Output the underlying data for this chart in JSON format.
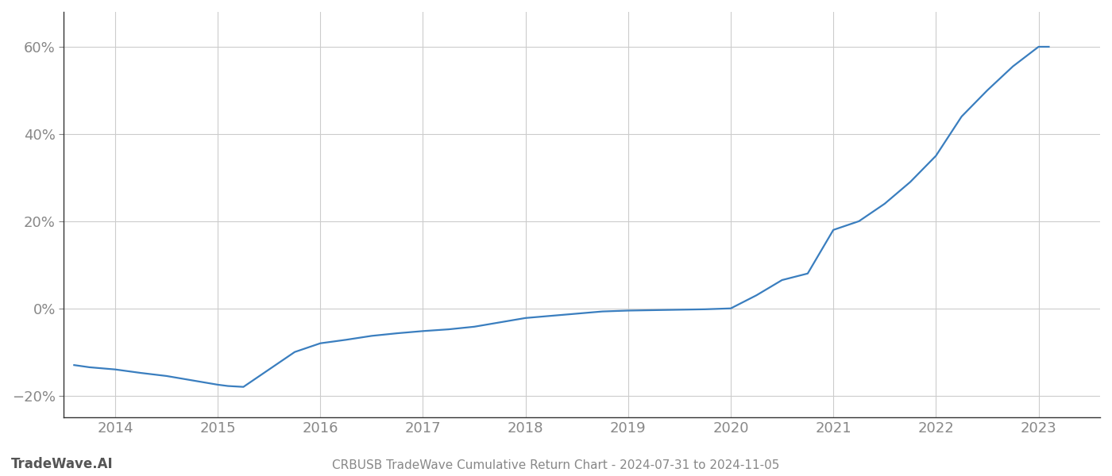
{
  "title": "CRBUSB TradeWave Cumulative Return Chart - 2024-07-31 to 2024-11-05",
  "watermark": "TradeWave.AI",
  "line_color": "#3a7ebf",
  "background_color": "#ffffff",
  "grid_color": "#cccccc",
  "x_years": [
    2013.6,
    2013.75,
    2014.0,
    2014.25,
    2014.5,
    2014.75,
    2015.0,
    2015.1,
    2015.25,
    2015.5,
    2015.75,
    2016.0,
    2016.25,
    2016.5,
    2016.75,
    2017.0,
    2017.25,
    2017.5,
    2017.75,
    2018.0,
    2018.25,
    2018.5,
    2018.75,
    2019.0,
    2019.25,
    2019.5,
    2019.75,
    2020.0,
    2020.25,
    2020.5,
    2020.75,
    2021.0,
    2021.25,
    2021.5,
    2021.75,
    2022.0,
    2022.25,
    2022.5,
    2022.75,
    2023.0,
    2023.1
  ],
  "y_values": [
    -0.13,
    -0.135,
    -0.14,
    -0.148,
    -0.155,
    -0.165,
    -0.175,
    -0.178,
    -0.18,
    -0.14,
    -0.1,
    -0.08,
    -0.072,
    -0.063,
    -0.057,
    -0.052,
    -0.048,
    -0.042,
    -0.032,
    -0.022,
    -0.017,
    -0.012,
    -0.007,
    -0.005,
    -0.004,
    -0.003,
    -0.002,
    0.0,
    0.03,
    0.065,
    0.08,
    0.18,
    0.2,
    0.24,
    0.29,
    0.35,
    0.44,
    0.5,
    0.555,
    0.6,
    0.6
  ],
  "xlim": [
    2013.5,
    2023.6
  ],
  "ylim": [
    -0.25,
    0.68
  ],
  "xticks": [
    2014,
    2015,
    2016,
    2017,
    2018,
    2019,
    2020,
    2021,
    2022,
    2023
  ],
  "yticks": [
    -0.2,
    0.0,
    0.2,
    0.4,
    0.6
  ],
  "ytick_labels": [
    "−20%",
    "0%",
    "20%",
    "40%",
    "60%"
  ],
  "line_width": 1.6,
  "title_fontsize": 11,
  "watermark_fontsize": 12,
  "tick_fontsize": 13,
  "tick_color": "#888888",
  "axis_color": "#333333",
  "spine_color": "#333333"
}
